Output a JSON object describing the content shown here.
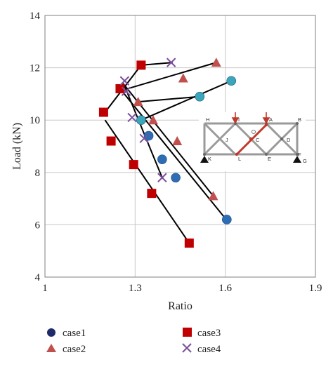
{
  "chart_data": {
    "type": "scatter",
    "xlabel": "Ratio",
    "ylabel": "Load (kN)",
    "xlim": [
      1,
      1.9
    ],
    "ylim": [
      4,
      14
    ],
    "x_ticks": [
      "1",
      "1.3",
      "1.6",
      "1.9"
    ],
    "y_ticks": [
      "4",
      "6",
      "8",
      "10",
      "12",
      "14"
    ],
    "grid": true,
    "legend": "bottom",
    "colors": {
      "case1": "#2e6db4",
      "case1_alt": "#3aa6b8",
      "case2": "#c0504d",
      "case3": "#c00000",
      "case4": "#7a4f9a",
      "line": "#000000",
      "grid": "#c8c8c8"
    },
    "series": [
      {
        "name": "case1",
        "marker": "circle",
        "points": [
          {
            "x": 1.62,
            "y": 11.5,
            "color": "case1_alt"
          },
          {
            "x": 1.515,
            "y": 10.9,
            "color": "case1_alt"
          },
          {
            "x": 1.32,
            "y": 10.0,
            "color": "case1_alt"
          },
          {
            "x": 1.345,
            "y": 9.4,
            "color": "case1"
          },
          {
            "x": 1.39,
            "y": 8.5,
            "color": "case1"
          },
          {
            "x": 1.435,
            "y": 7.8,
            "color": "case1"
          },
          {
            "x": 1.605,
            "y": 6.2,
            "color": "case1"
          }
        ]
      },
      {
        "name": "case2",
        "marker": "triangle",
        "points": [
          {
            "x": 1.57,
            "y": 12.2
          },
          {
            "x": 1.46,
            "y": 11.6
          },
          {
            "x": 1.31,
            "y": 10.7
          },
          {
            "x": 1.36,
            "y": 10.0
          },
          {
            "x": 1.44,
            "y": 9.2
          },
          {
            "x": 1.56,
            "y": 7.1
          }
        ]
      },
      {
        "name": "case3",
        "marker": "square",
        "points": [
          {
            "x": 1.32,
            "y": 12.1
          },
          {
            "x": 1.25,
            "y": 11.2
          },
          {
            "x": 1.195,
            "y": 10.3
          },
          {
            "x": 1.22,
            "y": 9.2
          },
          {
            "x": 1.295,
            "y": 8.3
          },
          {
            "x": 1.355,
            "y": 7.2
          },
          {
            "x": 1.48,
            "y": 5.3
          }
        ]
      },
      {
        "name": "case4",
        "marker": "x",
        "points": [
          {
            "x": 1.42,
            "y": 12.2
          },
          {
            "x": 1.265,
            "y": 11.5
          },
          {
            "x": 1.27,
            "y": 11.1
          },
          {
            "x": 1.29,
            "y": 10.1
          },
          {
            "x": 1.33,
            "y": 9.3
          },
          {
            "x": 1.39,
            "y": 7.8
          }
        ]
      }
    ],
    "lines": [
      [
        [
          1.2,
          10.3
        ],
        [
          1.32,
          12.1
        ]
      ],
      [
        [
          1.32,
          12.1
        ],
        [
          1.425,
          12.2
        ]
      ],
      [
        [
          1.275,
          11.2
        ],
        [
          1.57,
          12.2
        ]
      ],
      [
        [
          1.31,
          10.7
        ],
        [
          1.515,
          10.9
        ]
      ],
      [
        [
          1.32,
          10.0
        ],
        [
          1.62,
          11.5
        ]
      ],
      [
        [
          1.2,
          10.0
        ],
        [
          1.48,
          5.3
        ]
      ],
      [
        [
          1.265,
          11.3
        ],
        [
          1.39,
          7.8
        ]
      ],
      [
        [
          1.25,
          11.2
        ],
        [
          1.61,
          6.1
        ]
      ],
      [
        [
          1.26,
          11.4
        ],
        [
          1.56,
          7.1
        ]
      ]
    ],
    "inset": {
      "labels": [
        "H",
        "I",
        "A",
        "B",
        "J",
        "C",
        "D",
        "K",
        "L",
        "E",
        "F",
        "G"
      ]
    }
  }
}
